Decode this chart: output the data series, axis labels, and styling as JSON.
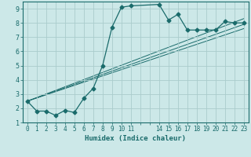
{
  "xlabel": "Humidex (Indice chaleur)",
  "bg_color": "#cce8e8",
  "grid_color": "#aacccc",
  "line_color": "#1a6b6b",
  "xlim": [
    -0.5,
    23.5
  ],
  "ylim": [
    1,
    9.5
  ],
  "xticks": [
    0,
    1,
    2,
    3,
    4,
    5,
    6,
    7,
    8,
    9,
    10,
    11,
    12,
    13,
    14,
    15,
    16,
    17,
    18,
    19,
    20,
    21,
    22,
    23
  ],
  "xticklabels": [
    "0",
    "1",
    "2",
    "3",
    "4",
    "5",
    "6",
    "7",
    "8",
    "9",
    "10",
    "11",
    "",
    "",
    "14",
    "15",
    "16",
    "17",
    "18",
    "19",
    "20",
    "21",
    "22",
    "23"
  ],
  "yticks": [
    1,
    2,
    3,
    4,
    5,
    6,
    7,
    8,
    9
  ],
  "curve1_x": [
    0,
    1,
    2,
    3,
    4,
    5,
    6,
    7,
    8,
    9,
    10,
    11,
    14,
    15,
    16,
    17,
    18,
    19,
    20,
    21,
    22,
    23
  ],
  "curve1_y": [
    2.5,
    1.8,
    1.8,
    1.5,
    1.85,
    1.7,
    2.7,
    3.4,
    5.0,
    7.7,
    9.1,
    9.2,
    9.3,
    8.2,
    8.6,
    7.5,
    7.5,
    7.5,
    7.5,
    8.1,
    8.0,
    8.0
  ],
  "line1_x": [
    0,
    23
  ],
  "line1_y": [
    2.5,
    8.3
  ],
  "line2_x": [
    0,
    23
  ],
  "line2_y": [
    2.5,
    7.9
  ],
  "line3_x": [
    0,
    23
  ],
  "line3_y": [
    2.5,
    7.6
  ],
  "marker": "D",
  "markersize": 2.5
}
